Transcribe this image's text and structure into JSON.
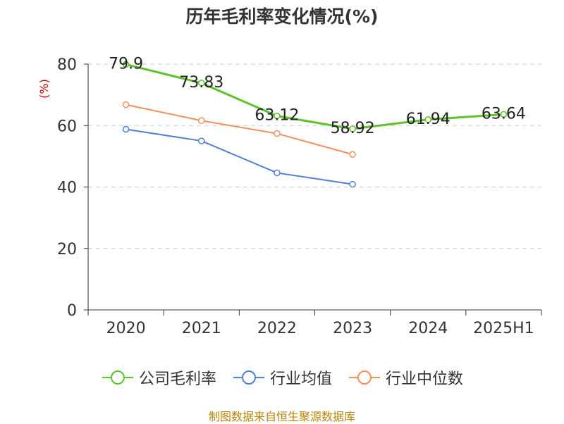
{
  "chart_data": {
    "type": "line",
    "title": "历年毛利率变化情况(%)",
    "ylabel": "(%)",
    "categories": [
      "2020",
      "2021",
      "2022",
      "2023",
      "2024",
      "2025H1"
    ],
    "ylim": [
      0,
      80
    ],
    "yticks": [
      0,
      20,
      40,
      60,
      80
    ],
    "grid": true,
    "legend_position": "bottom",
    "series": [
      {
        "name": "公司毛利率",
        "color": "#5ec12d",
        "values": [
          79.9,
          73.83,
          63.12,
          58.92,
          61.94,
          63.64
        ],
        "labels": [
          "79.9",
          "73.83",
          "63.12",
          "58.92",
          "61.94",
          "63.64"
        ],
        "width": 3
      },
      {
        "name": "行业均值",
        "color": "#4f7fd9",
        "values": [
          58.8,
          55.0,
          44.6,
          40.9,
          null,
          null
        ],
        "width": 2
      },
      {
        "name": "行业中位数",
        "color": "#f58f5c",
        "values": [
          66.8,
          61.6,
          57.4,
          50.6,
          null,
          null
        ],
        "width": 2
      }
    ]
  },
  "footer": {
    "source": "制图数据来自恒生聚源数据库"
  }
}
